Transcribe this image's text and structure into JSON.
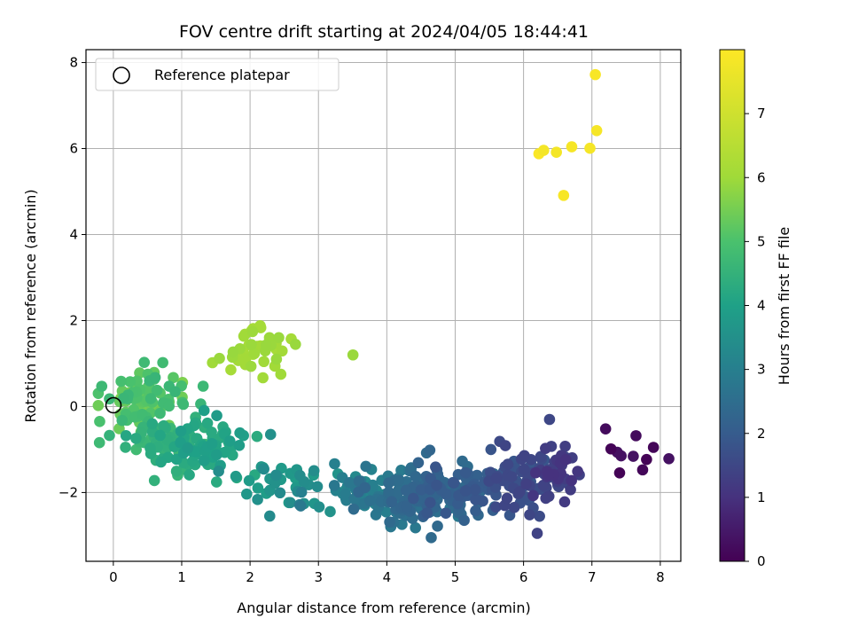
{
  "chart_data": {
    "type": "scatter",
    "title": "FOV centre drift starting at 2024/04/05 18:44:41",
    "xlabel": "Angular distance from reference (arcmin)",
    "ylabel": "Rotation from reference (arcmin)",
    "xlim": [
      -0.4,
      8.3
    ],
    "ylim": [
      -3.6,
      8.3
    ],
    "xticks": [
      0,
      1,
      2,
      3,
      4,
      5,
      6,
      7,
      8
    ],
    "yticks": [
      -2,
      0,
      2,
      4,
      6,
      8
    ],
    "xtick_labels": [
      "0",
      "1",
      "2",
      "3",
      "4",
      "5",
      "6",
      "7",
      "8"
    ],
    "ytick_labels": [
      "−2",
      "0",
      "2",
      "4",
      "6",
      "8"
    ],
    "grid": true,
    "colormap": "viridis",
    "colorbar": {
      "label": "Hours from first FF file",
      "range": [
        0,
        8
      ],
      "ticks": [
        0,
        1,
        2,
        3,
        4,
        5,
        6,
        7
      ],
      "tick_labels": [
        "0",
        "1",
        "2",
        "3",
        "4",
        "5",
        "6",
        "7"
      ]
    },
    "legend": {
      "position": "top-left",
      "entries": [
        {
          "label": "Reference platepar",
          "marker": "open-circle",
          "color": "#000000"
        }
      ]
    },
    "reference_point": {
      "x": 0,
      "y": 0
    },
    "clusters": [
      {
        "hour_range": [
          7.7,
          7.95
        ],
        "xc": 6.7,
        "yc": 6.1,
        "sx": 0.25,
        "sy": 0.5,
        "count": 7
      },
      {
        "hour_range": [
          5.9,
          6.15
        ],
        "xc": 2.1,
        "yc": 1.35,
        "sx": 0.25,
        "sy": 0.35,
        "count": 40
      },
      {
        "hour_range": [
          5.9,
          5.95
        ],
        "xc": 3.5,
        "yc": 1.2,
        "sx": 0.01,
        "sy": 0.01,
        "count": 1
      },
      {
        "hour_range": [
          4.6,
          5.6
        ],
        "xc": 0.45,
        "yc": 0.2,
        "sx": 0.3,
        "sy": 0.4,
        "count": 90
      },
      {
        "hour_range": [
          4.1,
          4.8
        ],
        "xc": 0.75,
        "yc": -0.85,
        "sx": 0.35,
        "sy": 0.35,
        "count": 80
      },
      {
        "hour_range": [
          3.8,
          4.3
        ],
        "xc": 1.4,
        "yc": -1.05,
        "sx": 0.3,
        "sy": 0.35,
        "count": 60
      },
      {
        "hour_range": [
          3.3,
          3.9
        ],
        "xc": 2.6,
        "yc": -1.75,
        "sx": 0.45,
        "sy": 0.3,
        "count": 40
      },
      {
        "hour_range": [
          2.7,
          3.4
        ],
        "xc": 3.6,
        "yc": -1.95,
        "sx": 0.4,
        "sy": 0.25,
        "count": 45
      },
      {
        "hour_range": [
          2.2,
          2.9
        ],
        "xc": 4.4,
        "yc": -2.1,
        "sx": 0.35,
        "sy": 0.35,
        "count": 110
      },
      {
        "hour_range": [
          1.8,
          2.4
        ],
        "xc": 5.1,
        "yc": -1.95,
        "sx": 0.35,
        "sy": 0.35,
        "count": 90
      },
      {
        "hour_range": [
          1.4,
          1.9
        ],
        "xc": 5.9,
        "yc": -1.75,
        "sx": 0.3,
        "sy": 0.35,
        "count": 70
      },
      {
        "hour_range": [
          1.0,
          1.5
        ],
        "xc": 6.45,
        "yc": -1.6,
        "sx": 0.2,
        "sy": 0.4,
        "count": 45
      },
      {
        "hour_range": [
          0.05,
          0.35
        ],
        "xc": 7.6,
        "yc": -1.2,
        "sx": 0.25,
        "sy": 0.25,
        "count": 9
      }
    ],
    "extra_points": [
      {
        "x": 6.38,
        "y": -0.3,
        "hours": 1.5
      },
      {
        "x": 6.2,
        "y": -2.95,
        "hours": 1.4
      },
      {
        "x": 4.65,
        "y": -3.05,
        "hours": 2.4
      },
      {
        "x": 7.2,
        "y": -0.52,
        "hours": 0.2
      },
      {
        "x": 7.9,
        "y": -0.95,
        "hours": 0.1
      },
      {
        "x": 7.05,
        "y": 7.72,
        "hours": 7.9
      },
      {
        "x": 1.45,
        "y": 1.02,
        "hours": 6.0
      },
      {
        "x": 2.45,
        "y": 0.75,
        "hours": 6.0
      },
      {
        "x": 2.3,
        "y": -0.65,
        "hours": 3.5
      }
    ]
  }
}
